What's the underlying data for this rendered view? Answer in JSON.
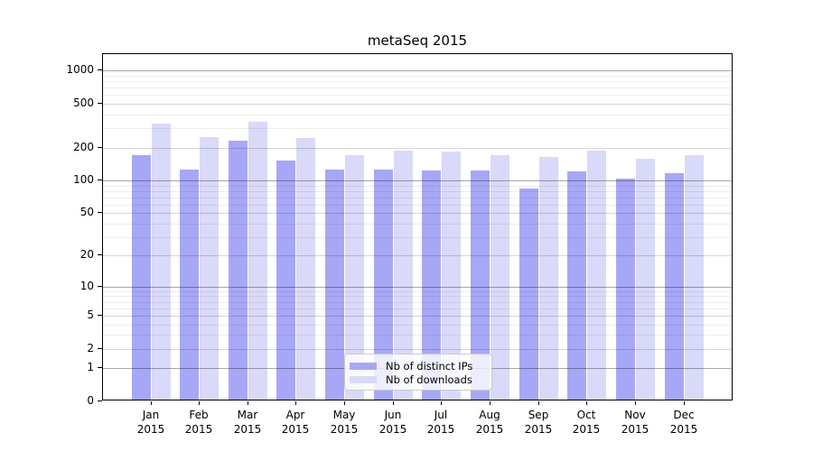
{
  "chart_data": {
    "type": "bar",
    "title": "metaSeq 2015",
    "year": "2015",
    "months": [
      "Jan",
      "Feb",
      "Mar",
      "Apr",
      "May",
      "Jun",
      "Jul",
      "Aug",
      "Sep",
      "Oct",
      "Nov",
      "Dec"
    ],
    "series": [
      {
        "name": "Nb of distinct IPs",
        "color": "#a7a7f7",
        "values": [
          165,
          122,
          221,
          146,
          121,
          122,
          119,
          120,
          82,
          116,
          100,
          112
        ]
      },
      {
        "name": "Nb of downloads",
        "color": "#d9d9fa",
        "values": [
          316,
          241,
          331,
          234,
          165,
          181,
          176,
          163,
          157,
          181,
          152,
          164
        ]
      }
    ],
    "y_axis": {
      "scale": "log1p",
      "ticks": [
        0,
        1,
        2,
        5,
        10,
        20,
        50,
        100,
        200,
        500,
        1000
      ],
      "decade_ticks": [
        1,
        10,
        100,
        1000
      ],
      "minor_ticks": [
        3,
        4,
        6,
        7,
        8,
        9,
        30,
        40,
        60,
        70,
        80,
        90,
        300,
        400,
        600,
        700,
        800,
        900
      ],
      "top_value": 1414,
      "ylim": [
        0,
        1414
      ]
    },
    "legend_position": "bottom-center",
    "grid": true,
    "colors": {
      "background": "#ffffff",
      "axis": "#000000"
    }
  }
}
